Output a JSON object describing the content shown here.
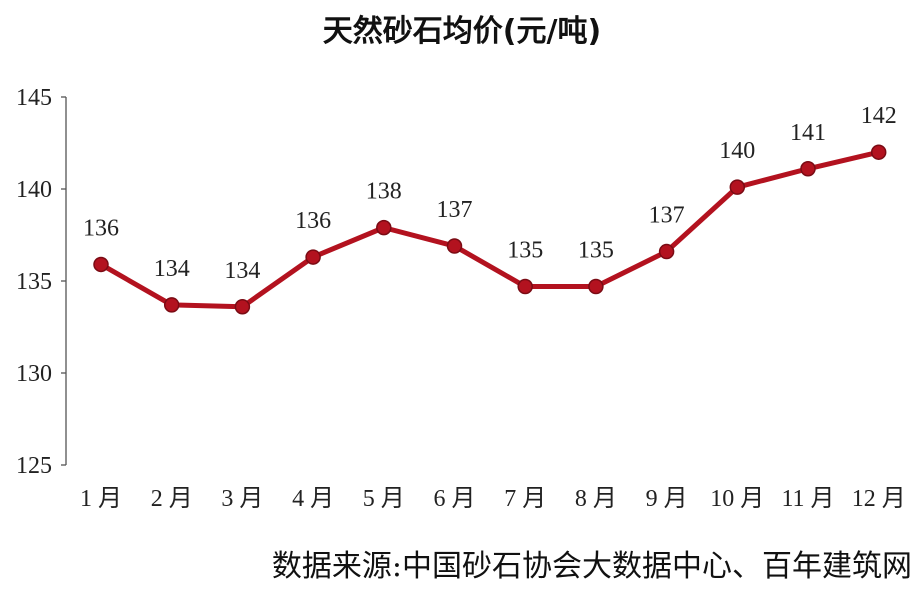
{
  "chart_data": {
    "type": "line",
    "title": "天然砂石均价(元/吨)",
    "categories": [
      "1 月",
      "2 月",
      "3 月",
      "4 月",
      "5 月",
      "6 月",
      "7 月",
      "8 月",
      "9 月",
      "10 月",
      "11 月",
      "12 月"
    ],
    "series": [
      {
        "values": [
          135.9,
          133.7,
          133.6,
          136.3,
          137.9,
          136.9,
          134.7,
          134.7,
          136.6,
          140.1,
          141.1,
          142.0
        ],
        "data_labels": [
          "136",
          "134",
          "134",
          "136",
          "138",
          "137",
          "135",
          "135",
          "137",
          "140",
          "141",
          "142"
        ],
        "color": "#b3121f"
      }
    ],
    "y_ticks": [
      125,
      130,
      135,
      140,
      145
    ],
    "ylim": [
      125,
      145
    ],
    "grid": false,
    "legend": "none"
  },
  "footer": {
    "source": "数据来源:中国砂石协会大数据中心、百年建筑网"
  }
}
